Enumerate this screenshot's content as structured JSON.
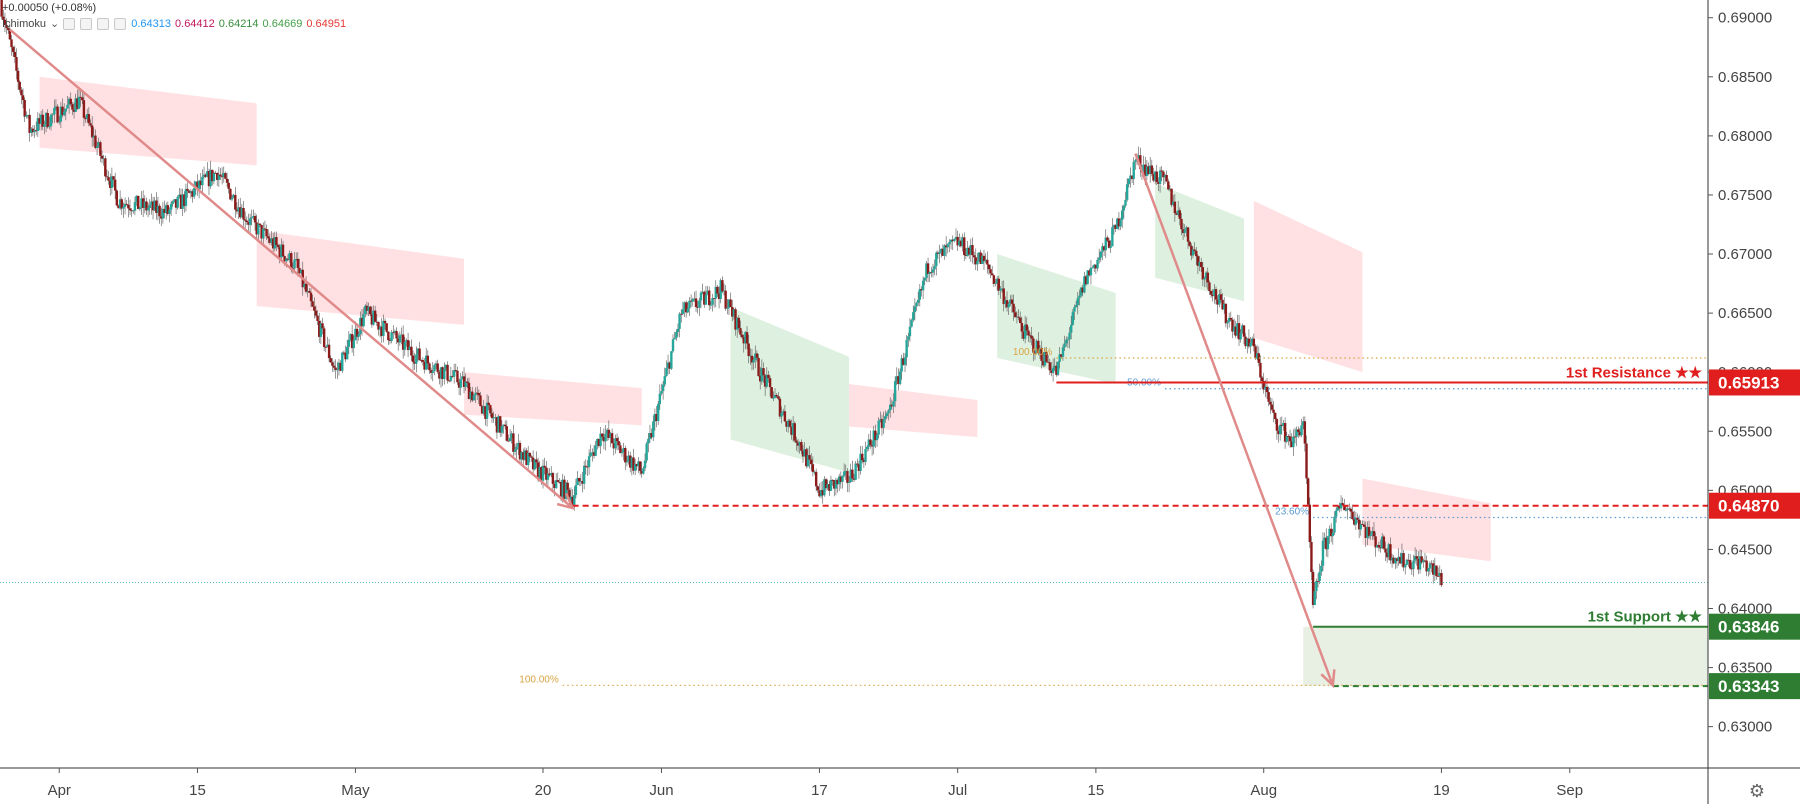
{
  "legend": {
    "change": "+0.00050 (+0.08%)",
    "indicator": "Ichimoku",
    "values": [
      "0.64313",
      "0.64412",
      "0.64214",
      "0.64669",
      "0.64951"
    ]
  },
  "colors": {
    "up_candle": "#26a69a",
    "down_candle": "#8b1a1a",
    "resistance": "#e01e1e",
    "support": "#2e7d32",
    "arrow": "#e08a8a",
    "fib_100": "#d9a441",
    "fib_other": "#5b9bd5",
    "cloud_bull": "#c8e6c9",
    "cloud_bear": "#ffcdd2",
    "target_zone": "#e8f0e4"
  },
  "chart_data": {
    "type": "candlestick",
    "title": "",
    "ylim": [
      0.6265,
      0.6915
    ],
    "y_ticks": [
      "0.69000",
      "0.68500",
      "0.68000",
      "0.67500",
      "0.67000",
      "0.66500",
      "0.66000",
      "0.65500",
      "0.65000",
      "0.64500",
      "0.64000",
      "0.63500",
      "0.63000"
    ],
    "x_ticks": [
      {
        "label": "Apr",
        "date": "2019-04-01"
      },
      {
        "label": "15",
        "date": "2019-04-15"
      },
      {
        "label": "May",
        "date": "2019-05-01"
      },
      {
        "label": "20",
        "date": "2019-05-20"
      },
      {
        "label": "Jun",
        "date": "2019-06-01"
      },
      {
        "label": "17",
        "date": "2019-06-17"
      },
      {
        "label": "Jul",
        "date": "2019-07-01"
      },
      {
        "label": "15",
        "date": "2019-07-15"
      },
      {
        "label": "Aug",
        "date": "2019-08-01"
      },
      {
        "label": "19",
        "date": "2019-08-19"
      },
      {
        "label": "Sep",
        "date": "2019-09-01"
      }
    ],
    "xlim": [
      "2019-03-26",
      "2019-09-15"
    ],
    "price_path": [
      [
        "2019-03-26",
        0.6915
      ],
      [
        "2019-03-29",
        0.6805
      ],
      [
        "2019-04-03",
        0.683
      ],
      [
        "2019-04-07",
        0.6745
      ],
      [
        "2019-04-12",
        0.6735
      ],
      [
        "2019-04-17",
        0.677
      ],
      [
        "2019-04-20",
        0.673
      ],
      [
        "2019-04-25",
        0.669
      ],
      [
        "2019-04-29",
        0.66
      ],
      [
        "2019-05-02",
        0.665
      ],
      [
        "2019-05-07",
        0.6615
      ],
      [
        "2019-05-12",
        0.659
      ],
      [
        "2019-05-15",
        0.656
      ],
      [
        "2019-05-19",
        0.652
      ],
      [
        "2019-05-23",
        0.6495
      ],
      [
        "2019-05-26",
        0.655
      ],
      [
        "2019-05-30",
        0.6515
      ],
      [
        "2019-06-03",
        0.665
      ],
      [
        "2019-06-07",
        0.667
      ],
      [
        "2019-06-11",
        0.66
      ],
      [
        "2019-06-15",
        0.654
      ],
      [
        "2019-06-17",
        0.65
      ],
      [
        "2019-06-20",
        0.651
      ],
      [
        "2019-06-24",
        0.6565
      ],
      [
        "2019-06-28",
        0.669
      ],
      [
        "2019-07-01",
        0.671
      ],
      [
        "2019-07-04",
        0.669
      ],
      [
        "2019-07-08",
        0.663
      ],
      [
        "2019-07-11",
        0.66
      ],
      [
        "2019-07-14",
        0.668
      ],
      [
        "2019-07-17",
        0.672
      ],
      [
        "2019-07-19",
        0.678
      ],
      [
        "2019-07-22",
        0.676
      ],
      [
        "2019-07-25",
        0.67
      ],
      [
        "2019-07-28",
        0.665
      ],
      [
        "2019-07-31",
        0.662
      ],
      [
        "2019-08-02",
        0.656
      ],
      [
        "2019-08-04",
        0.654
      ],
      [
        "2019-08-05",
        0.656
      ],
      [
        "2019-08-06",
        0.64
      ],
      [
        "2019-08-07",
        0.645
      ],
      [
        "2019-08-09",
        0.649
      ],
      [
        "2019-08-12",
        0.646
      ],
      [
        "2019-08-15",
        0.644
      ],
      [
        "2019-08-17",
        0.644
      ],
      [
        "2019-08-19",
        0.6425
      ]
    ],
    "ichimoku_cloud": [
      {
        "from": "2019-03-30",
        "to": "2019-04-21",
        "top": 0.685,
        "bottom": 0.6775,
        "trend": "bear"
      },
      {
        "from": "2019-04-21",
        "to": "2019-05-12",
        "top": 0.672,
        "bottom": 0.664,
        "trend": "bear"
      },
      {
        "from": "2019-05-12",
        "to": "2019-05-30",
        "top": 0.66,
        "bottom": 0.6555,
        "trend": "bear"
      },
      {
        "from": "2019-06-08",
        "to": "2019-06-20",
        "top": 0.6655,
        "bottom": 0.6515,
        "trend": "bull"
      },
      {
        "from": "2019-06-20",
        "to": "2019-07-03",
        "top": 0.659,
        "bottom": 0.6545,
        "trend": "bear"
      },
      {
        "from": "2019-07-05",
        "to": "2019-07-17",
        "top": 0.67,
        "bottom": 0.659,
        "trend": "bull"
      },
      {
        "from": "2019-07-21",
        "to": "2019-07-30",
        "top": 0.676,
        "bottom": 0.666,
        "trend": "bull"
      },
      {
        "from": "2019-07-31",
        "to": "2019-08-11",
        "top": 0.6745,
        "bottom": 0.66,
        "trend": "bear"
      },
      {
        "from": "2019-08-11",
        "to": "2019-08-24",
        "top": 0.651,
        "bottom": 0.644,
        "trend": "bear"
      }
    ],
    "arrows": [
      {
        "from": [
          "2019-03-27",
          0.689
        ],
        "to": [
          "2019-05-23",
          0.6485
        ]
      },
      {
        "from": [
          "2019-07-19",
          0.6785
        ],
        "to": [
          "2019-08-08",
          0.6335
        ]
      }
    ],
    "levels": [
      {
        "name": "1st Resistance ★★",
        "price": "0.65913",
        "value": 0.65913,
        "from": "2019-07-11",
        "style": "solid",
        "color": "#e01e1e"
      },
      {
        "name": "",
        "price": "0.64870",
        "value": 0.6487,
        "from": "2019-05-23",
        "style": "dashed",
        "color": "#e01e1e"
      },
      {
        "name": "1st Support ★★",
        "price": "0.63846",
        "value": 0.63846,
        "from": "2019-08-06",
        "style": "solid",
        "color": "#2e7d32"
      },
      {
        "name": "",
        "price": "0.63343",
        "value": 0.63343,
        "from": "2019-08-08",
        "style": "dashed",
        "color": "#2e7d32"
      }
    ],
    "fib_lines": [
      {
        "label": "100.00%",
        "value": 0.6612,
        "from": "2019-07-11",
        "color": "#d9a441"
      },
      {
        "label": "50.00%",
        "value": 0.6586,
        "from": "2019-07-22",
        "color": "#5b9bd5"
      },
      {
        "label": "23.60%",
        "value": 0.6477,
        "from": "2019-08-06",
        "color": "#5b9bd5"
      },
      {
        "label": "100.00%",
        "value": 0.6335,
        "from": "2019-05-22",
        "color": "#d9a441"
      }
    ],
    "target_zone": {
      "from": "2019-08-05",
      "top": 0.63846,
      "bottom": 0.63343
    },
    "current_price_line": 0.6422
  }
}
